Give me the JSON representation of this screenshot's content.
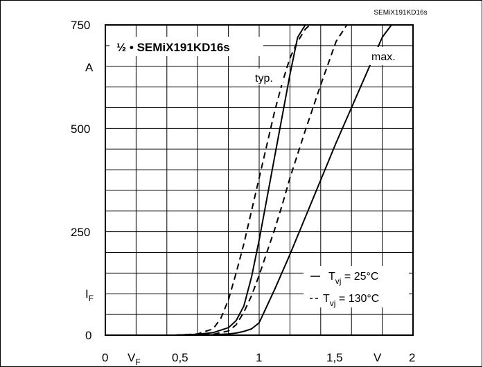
{
  "chart_data": {
    "type": "line",
    "corner_label": "SEMiX191KD16s",
    "title": "½ • SEMiX191KD16s",
    "x_ticks": [
      "0",
      "0,5",
      "1",
      "1,5",
      "2"
    ],
    "y_ticks": [
      "0",
      "250",
      "500",
      "750"
    ],
    "xlabel_symbol": "V",
    "xlabel_sub": "F",
    "xunit": "V",
    "ylabel_symbol": "I",
    "ylabel_sub": "F",
    "yunit": "A",
    "xlim": [
      0,
      2
    ],
    "ylim": [
      0,
      750
    ],
    "grid": true,
    "annotations": {
      "typ": "typ.",
      "max": "max."
    },
    "legend": {
      "position": "bottom-right",
      "solid_prefix": "T",
      "solid_sub": "vj",
      "solid_value": " =  25°C",
      "dashed_prefix": "T",
      "dashed_sub": "vj",
      "dashed_value": " = 130°C"
    },
    "series": [
      {
        "style": "solid",
        "x": [
          0.45,
          0.6,
          0.7,
          0.8,
          0.85,
          0.9,
          0.95,
          1.0,
          1.05,
          1.1,
          1.15,
          1.2,
          1.25,
          1.3
        ],
        "y": [
          0,
          2,
          6,
          18,
          35,
          70,
          140,
          230,
          330,
          430,
          530,
          630,
          720,
          750
        ]
      },
      {
        "style": "dashed",
        "x": [
          0.45,
          0.6,
          0.7,
          0.75,
          0.8,
          0.85,
          0.9,
          0.95,
          1.0,
          1.05,
          1.1,
          1.15,
          1.2,
          1.25,
          1.3,
          1.33
        ],
        "y": [
          0,
          3,
          15,
          40,
          85,
          150,
          220,
          300,
          380,
          460,
          540,
          610,
          670,
          710,
          740,
          750
        ]
      },
      {
        "style": "solid",
        "x": [
          0.55,
          0.7,
          0.8,
          0.85,
          0.9,
          0.95,
          1.0,
          1.05,
          1.1,
          1.2,
          1.3,
          1.4,
          1.5,
          1.6,
          1.7,
          1.8,
          1.86
        ],
        "y": [
          0,
          1,
          3,
          5,
          9,
          15,
          30,
          70,
          110,
          195,
          285,
          375,
          465,
          550,
          635,
          720,
          750
        ]
      },
      {
        "style": "dashed",
        "x": [
          0.5,
          0.7,
          0.8,
          0.85,
          0.9,
          0.95,
          1.0,
          1.05,
          1.1,
          1.15,
          1.2,
          1.3,
          1.4,
          1.5,
          1.57
        ],
        "y": [
          0,
          2,
          10,
          25,
          55,
          95,
          145,
          200,
          255,
          315,
          380,
          495,
          605,
          710,
          750
        ]
      }
    ]
  }
}
